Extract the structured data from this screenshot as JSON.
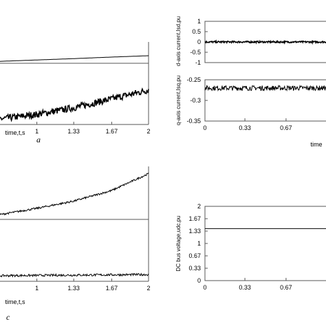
{
  "panel_labels": {
    "a": "a",
    "c": "c"
  },
  "chart_data": [
    {
      "type": "line",
      "title": "",
      "xlabel": "time,t,s",
      "ylabel": "",
      "xlim": [
        0.67,
        2.0
      ],
      "x_ticks": [
        "1",
        "1.33",
        "1.67",
        "2"
      ],
      "series": [
        {
          "x": [
            0.67,
            1.0,
            1.33,
            1.67,
            2.0
          ],
          "values": [
            0.0,
            0.07,
            0.14,
            0.22,
            0.29
          ],
          "noise": 0.0
        }
      ]
    },
    {
      "type": "line",
      "title": "",
      "xlabel": "time,t,s",
      "ylabel": "",
      "xlim": [
        0.67,
        2.0
      ],
      "x_ticks": [
        "1",
        "1.33",
        "1.67",
        "2"
      ],
      "series": [
        {
          "x": [
            0.67,
            1.0,
            1.33,
            1.67,
            2.0
          ],
          "values": [
            0.0,
            0.08,
            0.2,
            0.36,
            0.52
          ],
          "noise": 0.06
        }
      ]
    },
    {
      "type": "line",
      "title": "",
      "xlabel": "time",
      "ylabel": "d-axis current,Isd,pu",
      "xlim": [
        0,
        1.0
      ],
      "ylim": [
        -1,
        1
      ],
      "y_ticks": [
        "1",
        "0.5",
        "0",
        "-0.5",
        "-1"
      ],
      "x_ticks": [],
      "series": [
        {
          "x": [
            0,
            1.0
          ],
          "values": [
            0,
            0
          ],
          "noise": 0.04
        }
      ]
    },
    {
      "type": "line",
      "title": "",
      "xlabel": "time",
      "ylabel": "q-axis current,Isq,pu",
      "xlim": [
        0,
        1.0
      ],
      "ylim": [
        -0.35,
        -0.25
      ],
      "y_ticks": [
        "-0.25",
        "-0.3",
        "-0.35"
      ],
      "x_ticks": [
        "0",
        "0.33",
        "0.67"
      ],
      "series": [
        {
          "x": [
            0,
            1.0
          ],
          "values": [
            -0.27,
            -0.27
          ],
          "noise": 0.006
        }
      ]
    },
    {
      "type": "line",
      "title": "",
      "xlabel": "time,t,s",
      "ylabel": "",
      "xlim": [
        0.67,
        2.0
      ],
      "x_ticks": [
        "1",
        "1.33",
        "1.67",
        "2"
      ],
      "series": [
        {
          "x": [
            0.67,
            1.0,
            1.33,
            1.67,
            2.0
          ],
          "values": [
            0.0,
            0.13,
            0.28,
            0.5,
            0.85
          ],
          "noise": 0.02
        }
      ]
    },
    {
      "type": "line",
      "title": "",
      "xlabel": "time,t,s",
      "ylabel": "",
      "xlim": [
        0.67,
        2.0
      ],
      "x_ticks": [
        "1",
        "1.33",
        "1.67",
        "2"
      ],
      "series": [
        {
          "x": [
            0.67,
            2.0
          ],
          "values": [
            0.0,
            0.02
          ],
          "noise": 0.02
        }
      ]
    },
    {
      "type": "line",
      "title": "",
      "xlabel": "",
      "ylabel": "DC bus voltage,udc,pu",
      "xlim": [
        0,
        1.0
      ],
      "ylim": [
        0,
        2
      ],
      "y_ticks": [
        "2",
        "1.67",
        "1.33",
        "1",
        "0.67",
        "0.33",
        "0"
      ],
      "x_ticks": [
        "0",
        "0.33",
        "0.67"
      ],
      "series": [
        {
          "x": [
            0,
            1.0
          ],
          "values": [
            1.4,
            1.4
          ],
          "noise": 0.0
        }
      ]
    }
  ]
}
